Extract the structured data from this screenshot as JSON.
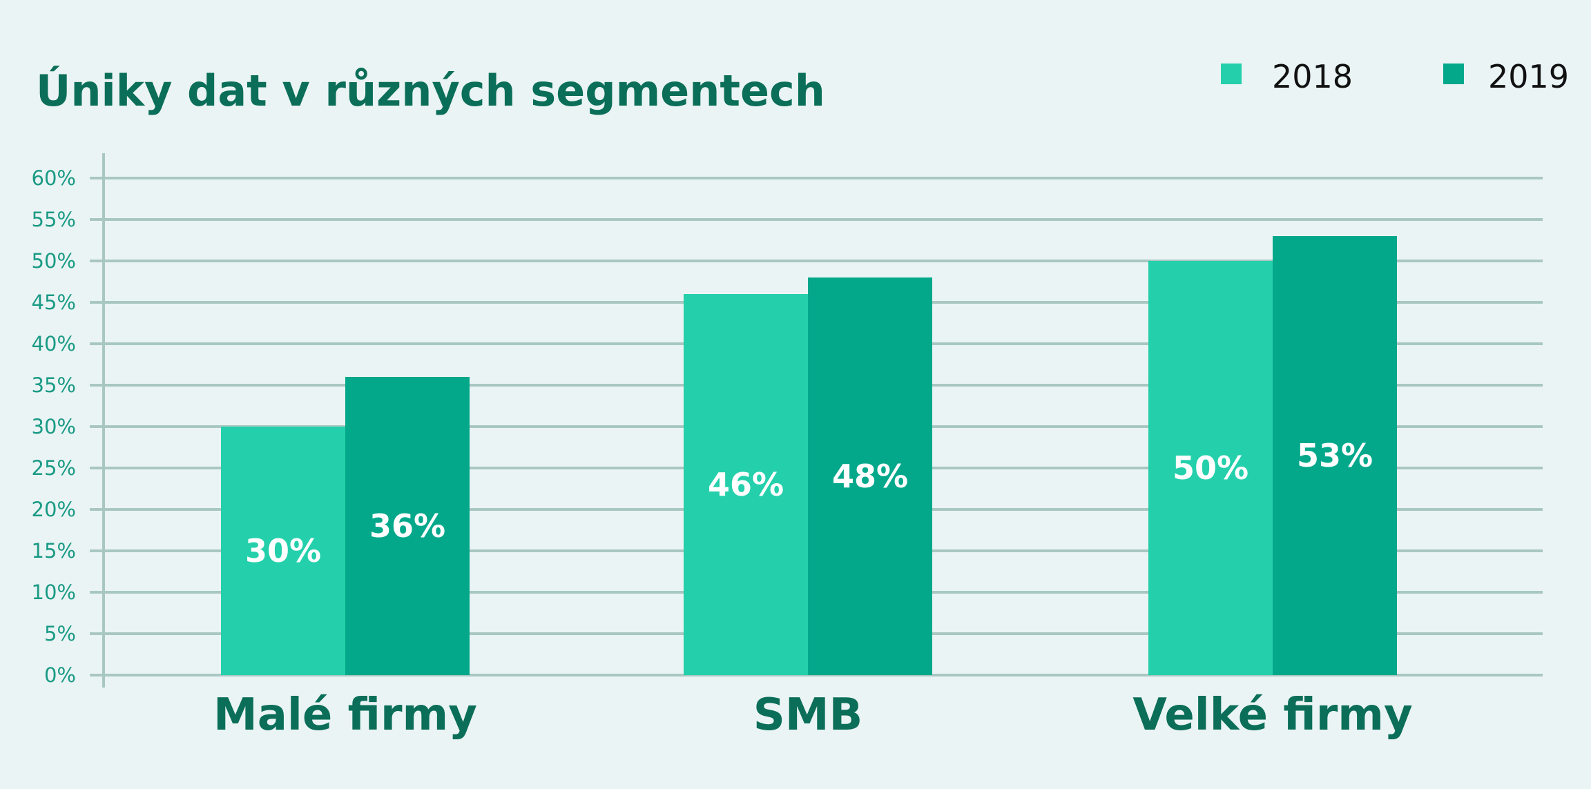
{
  "colors": {
    "background": "#eaf4f4",
    "title": "#0b6e58",
    "grid": "#a9c7c2",
    "tick": "#1a9a85",
    "series_2018": "#24d0ab",
    "series_2019": "#03a88b",
    "data_label": "#ffffff"
  },
  "chart_data": {
    "type": "bar",
    "title": "Úniky dat v různých segmentech",
    "xlabel": "",
    "ylabel": "",
    "categories": [
      "Malé firmy",
      "SMB",
      "Velké firmy"
    ],
    "series": [
      {
        "name": "2018",
        "values": [
          30,
          46,
          50
        ],
        "labels": [
          "30%",
          "46%",
          "50%"
        ]
      },
      {
        "name": "2019",
        "values": [
          36,
          48,
          53
        ],
        "labels": [
          "36%",
          "48%",
          "53%"
        ]
      }
    ],
    "ylim": [
      0,
      60
    ],
    "yticks": [
      "0%",
      "5%",
      "10%",
      "15%",
      "20%",
      "25%",
      "30%",
      "35%",
      "40%",
      "45%",
      "50%",
      "55%",
      "60%"
    ],
    "grid": true,
    "legend": "top-right"
  }
}
